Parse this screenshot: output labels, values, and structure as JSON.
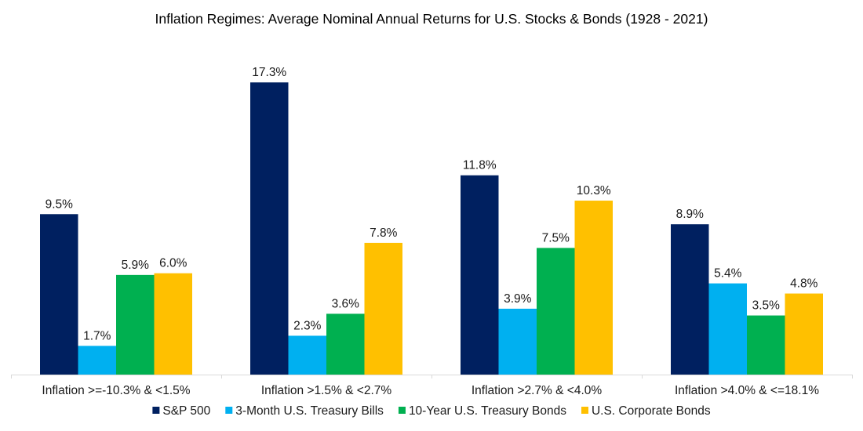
{
  "chart_data": {
    "type": "bar",
    "title": "Inflation Regimes: Average Nominal Annual Returns for U.S. Stocks & Bonds (1928 - 2021)",
    "xlabel": "",
    "ylabel": "",
    "ylim": [
      0,
      20
    ],
    "grid": false,
    "legend_position": "bottom",
    "value_format": "percent_1dp",
    "categories": [
      "Inflation >=-10.3% & <1.5%",
      "Inflation >1.5% & <2.7%",
      "Inflation >2.7% & <4.0%",
      "Inflation >4.0% & <=18.1%"
    ],
    "series": [
      {
        "name": "S&P 500",
        "color": "#002060",
        "values": [
          9.5,
          17.3,
          11.8,
          8.9
        ],
        "labels": [
          "9.5%",
          "17.3%",
          "11.8%",
          "8.9%"
        ]
      },
      {
        "name": "3-Month U.S. Treasury Bills",
        "color": "#00B0F0",
        "values": [
          1.7,
          2.3,
          3.9,
          5.4
        ],
        "labels": [
          "1.7%",
          "2.3%",
          "3.9%",
          "5.4%"
        ]
      },
      {
        "name": "10-Year U.S. Treasury Bonds",
        "color": "#00B050",
        "values": [
          5.9,
          3.6,
          7.5,
          3.5
        ],
        "labels": [
          "5.9%",
          "3.6%",
          "7.5%",
          "3.5%"
        ]
      },
      {
        "name": "U.S. Corporate Bonds",
        "color": "#FFC000",
        "values": [
          6.0,
          7.8,
          10.3,
          4.8
        ],
        "labels": [
          "6.0%",
          "7.8%",
          "10.3%",
          "4.8%"
        ]
      }
    ]
  },
  "colors": {
    "axis": "#d9d9d9",
    "text": "#1a1a1a"
  }
}
